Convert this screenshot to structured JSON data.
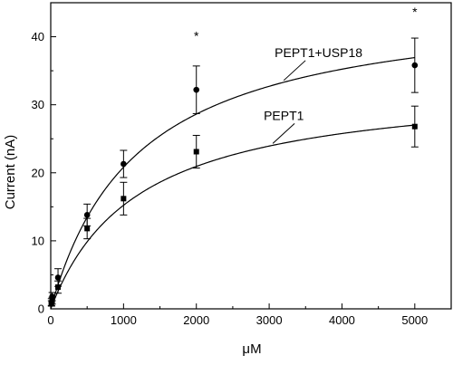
{
  "chart_data": {
    "type": "scatter",
    "xlabel": "μM",
    "ylabel": "Current (nA)",
    "xlim": [
      0,
      5500
    ],
    "ylim": [
      0,
      45
    ],
    "x_ticks": [
      0,
      1000,
      2000,
      3000,
      4000,
      5000
    ],
    "y_ticks": [
      0,
      10,
      20,
      30,
      40
    ],
    "x_minor_step": 500,
    "y_minor_step": 5,
    "x": [
      10,
      20,
      100,
      500,
      1000,
      2000,
      5000
    ],
    "series": [
      {
        "name": "PEPT1+USP18",
        "marker": "circle",
        "values": [
          1.0,
          1.8,
          4.6,
          13.8,
          21.3,
          32.2,
          35.8
        ],
        "errors": [
          0.5,
          0.6,
          1.3,
          1.6,
          2.0,
          3.5,
          4.0
        ],
        "fit": {
          "model": "michaelis-menten",
          "vmax": 45.8,
          "km": 1200
        },
        "label_anchor": [
          3200,
          33.5
        ]
      },
      {
        "name": "PEPT1",
        "marker": "square",
        "values": [
          0.8,
          1.2,
          3.2,
          11.8,
          16.2,
          23.1,
          26.8
        ],
        "errors": [
          0.4,
          0.5,
          0.9,
          1.5,
          2.4,
          2.4,
          3.0
        ],
        "fit": {
          "model": "michaelis-menten",
          "vmax": 33.5,
          "km": 1200
        },
        "label_anchor": [
          3050,
          25.6
        ]
      }
    ],
    "annotations": [
      {
        "text": "*",
        "x": 2000,
        "y": 39.5
      },
      {
        "text": "*",
        "x": 5000,
        "y": 43.0
      }
    ]
  }
}
